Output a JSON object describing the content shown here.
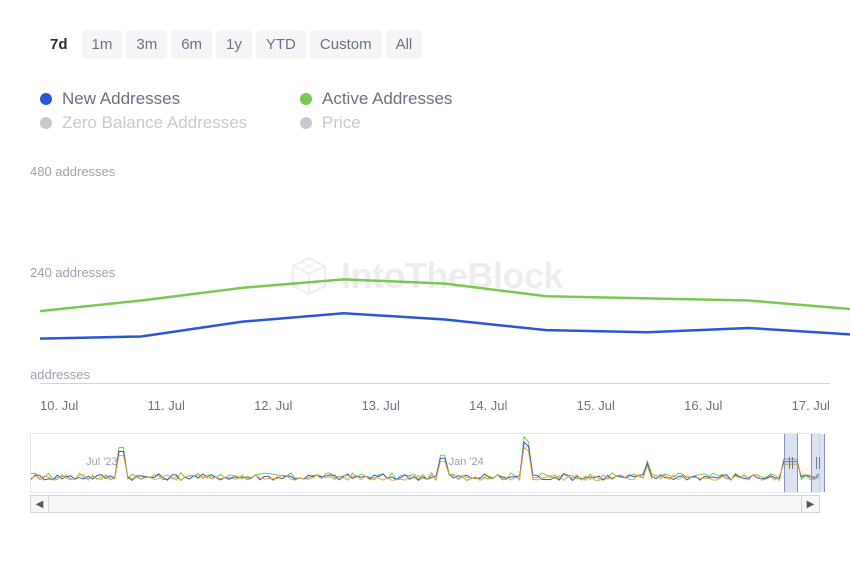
{
  "time_ranges": {
    "items": [
      "7d",
      "1m",
      "3m",
      "6m",
      "1y",
      "YTD",
      "Custom",
      "All"
    ],
    "active_index": 0,
    "text_color": "#6b7280",
    "active_color": "#2d2d2d",
    "bg_color": "#f5f5f7"
  },
  "legend": {
    "items": [
      {
        "label": "New Addresses",
        "color": "#2b57d6",
        "active": true
      },
      {
        "label": "Active Addresses",
        "color": "#79c850",
        "active": true
      },
      {
        "label": "Zero Balance Addresses",
        "color": "#c7c9ce",
        "active": false
      },
      {
        "label": "Price",
        "color": "#c7c9ce",
        "active": false
      }
    ],
    "active_text_color": "#6b7280",
    "inactive_text_color": "#c7c9ce",
    "fontsize": 17
  },
  "chart": {
    "type": "line",
    "ylim": [
      0,
      520
    ],
    "yticks": [
      {
        "value": 0,
        "label": "addresses"
      },
      {
        "value": 240,
        "label": "240 addresses"
      },
      {
        "value": 480,
        "label": "480 addresses"
      }
    ],
    "xlabels": [
      "10. Jul",
      "11. Jul",
      "12. Jul",
      "13. Jul",
      "14. Jul",
      "15. Jul",
      "16. Jul",
      "17. Jul"
    ],
    "series": [
      {
        "name": "Active Addresses",
        "color": "#79c850",
        "width": 2.5,
        "values": [
          170,
          195,
          225,
          245,
          235,
          205,
          200,
          195,
          175
        ]
      },
      {
        "name": "New Addresses",
        "color": "#2b57d6",
        "width": 2.5,
        "values": [
          105,
          110,
          145,
          165,
          150,
          125,
          120,
          130,
          115
        ]
      }
    ],
    "gridline_color": "#d1d5db",
    "axis_label_color": "#9ca3af",
    "xaxis_label_color": "#6b7280",
    "label_fontsize": 13,
    "background_color": "#ffffff"
  },
  "watermark": {
    "text": "IntoTheBlock",
    "color": "#555555",
    "opacity": 0.1,
    "fontsize": 36
  },
  "mini_chart": {
    "xlabels": [
      {
        "text": "Jul '23",
        "pos_pct": 7
      },
      {
        "text": "Jan '24",
        "pos_pct": 53
      }
    ],
    "series_colors": [
      "#79c850",
      "#2b57d6",
      "#f0a030"
    ],
    "range_window": {
      "start_pct": 95.5,
      "end_pct": 99
    },
    "border_color": "#e5e7eb",
    "label_color": "#9ca3af"
  },
  "scrollbar": {
    "left_glyph": "◀",
    "right_glyph": "▶",
    "bg_color": "#f7f7f9",
    "border_color": "#d1d5db"
  }
}
